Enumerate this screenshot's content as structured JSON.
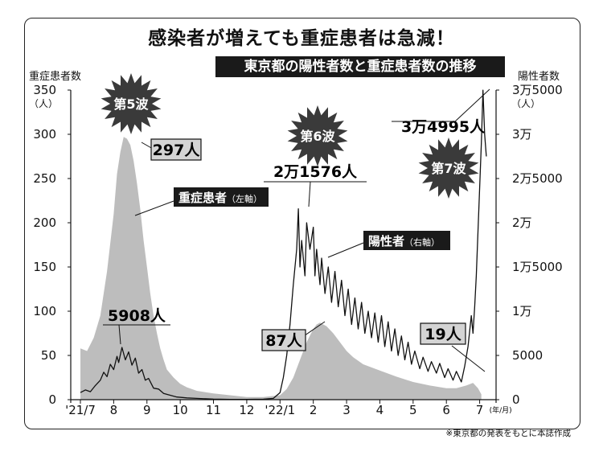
{
  "headline": "感染者が増えても重症患者は急減！",
  "subtitle": "東京都の陽性者数と重症患者数の推移",
  "source_note": "※東京都の発表をもとに本誌作成",
  "chart_data": {
    "type": "area",
    "title": "東京都の陽性者数と重症患者数の推移",
    "categories": [
      "'21/7",
      "8",
      "9",
      "10",
      "11",
      "12",
      "'22/1",
      "2",
      "3",
      "4",
      "5",
      "6",
      "7"
    ],
    "x_axis_unit": "(年/月)",
    "y_left": {
      "label": "重症患者数",
      "unit": "（人）",
      "ylim": [
        0,
        350
      ],
      "ticks": [
        "0",
        "50",
        "100",
        "150",
        "200",
        "250",
        "300",
        "350"
      ]
    },
    "y_right": {
      "label": "陽性者数",
      "unit": "（人）",
      "ylim": [
        0,
        35000
      ],
      "ticks": [
        "0",
        "5000",
        "1万",
        "1万5000",
        "2万",
        "2万5000",
        "3万",
        "3万5000"
      ]
    },
    "series": [
      {
        "name": "重症患者（左軸）",
        "axis": "left",
        "kind": "area",
        "color": "#bdbdbd",
        "points": [
          [
            0.0,
            58
          ],
          [
            0.2,
            55
          ],
          [
            0.4,
            70
          ],
          [
            0.6,
            95
          ],
          [
            0.8,
            145
          ],
          [
            1.0,
            210
          ],
          [
            1.1,
            255
          ],
          [
            1.2,
            280
          ],
          [
            1.3,
            297
          ],
          [
            1.4,
            295
          ],
          [
            1.5,
            288
          ],
          [
            1.6,
            270
          ],
          [
            1.7,
            245
          ],
          [
            1.8,
            215
          ],
          [
            1.9,
            180
          ],
          [
            2.0,
            150
          ],
          [
            2.1,
            120
          ],
          [
            2.2,
            95
          ],
          [
            2.3,
            75
          ],
          [
            2.4,
            58
          ],
          [
            2.5,
            45
          ],
          [
            2.6,
            34
          ],
          [
            2.8,
            25
          ],
          [
            3.0,
            18
          ],
          [
            3.2,
            14
          ],
          [
            3.5,
            10
          ],
          [
            4.0,
            7
          ],
          [
            4.5,
            5
          ],
          [
            5.0,
            3
          ],
          [
            5.5,
            3
          ],
          [
            6.0,
            5
          ],
          [
            6.2,
            12
          ],
          [
            6.4,
            25
          ],
          [
            6.6,
            45
          ],
          [
            6.8,
            65
          ],
          [
            7.0,
            80
          ],
          [
            7.1,
            85
          ],
          [
            7.2,
            87
          ],
          [
            7.4,
            83
          ],
          [
            7.6,
            75
          ],
          [
            7.8,
            65
          ],
          [
            8.0,
            55
          ],
          [
            8.2,
            48
          ],
          [
            8.5,
            40
          ],
          [
            9.0,
            33
          ],
          [
            9.5,
            26
          ],
          [
            10.0,
            20
          ],
          [
            10.5,
            16
          ],
          [
            11.0,
            13
          ],
          [
            11.3,
            13
          ],
          [
            11.6,
            16
          ],
          [
            11.8,
            19
          ],
          [
            11.95,
            13
          ],
          [
            12.05,
            6
          ]
        ]
      },
      {
        "name": "陽性者（右軸）",
        "axis": "right",
        "kind": "line",
        "color": "#111111",
        "points": [
          [
            0.0,
            800
          ],
          [
            0.15,
            1100
          ],
          [
            0.3,
            900
          ],
          [
            0.45,
            1600
          ],
          [
            0.6,
            2200
          ],
          [
            0.7,
            3100
          ],
          [
            0.8,
            2600
          ],
          [
            0.9,
            4000
          ],
          [
            1.0,
            3400
          ],
          [
            1.1,
            4900
          ],
          [
            1.15,
            4200
          ],
          [
            1.25,
            5908
          ],
          [
            1.35,
            4500
          ],
          [
            1.45,
            5400
          ],
          [
            1.55,
            3900
          ],
          [
            1.65,
            4700
          ],
          [
            1.75,
            3000
          ],
          [
            1.85,
            3400
          ],
          [
            1.95,
            2200
          ],
          [
            2.05,
            2400
          ],
          [
            2.2,
            1300
          ],
          [
            2.35,
            1200
          ],
          [
            2.5,
            700
          ],
          [
            2.7,
            500
          ],
          [
            2.9,
            300
          ],
          [
            3.2,
            200
          ],
          [
            3.5,
            150
          ],
          [
            4.0,
            60
          ],
          [
            4.5,
            40
          ],
          [
            5.0,
            30
          ],
          [
            5.5,
            50
          ],
          [
            5.8,
            150
          ],
          [
            6.0,
            800
          ],
          [
            6.1,
            2500
          ],
          [
            6.2,
            5000
          ],
          [
            6.3,
            8500
          ],
          [
            6.4,
            13000
          ],
          [
            6.5,
            17000
          ],
          [
            6.55,
            21576
          ],
          [
            6.6,
            15000
          ],
          [
            6.65,
            18000
          ],
          [
            6.75,
            14000
          ],
          [
            6.8,
            20000
          ],
          [
            6.9,
            17000
          ],
          [
            7.0,
            19500
          ],
          [
            7.05,
            14000
          ],
          [
            7.1,
            17000
          ],
          [
            7.2,
            13000
          ],
          [
            7.25,
            16000
          ],
          [
            7.35,
            12000
          ],
          [
            7.45,
            15000
          ],
          [
            7.55,
            11000
          ],
          [
            7.65,
            14500
          ],
          [
            7.75,
            10500
          ],
          [
            7.85,
            13500
          ],
          [
            7.95,
            9500
          ],
          [
            8.05,
            12500
          ],
          [
            8.15,
            8500
          ],
          [
            8.25,
            11500
          ],
          [
            8.35,
            8000
          ],
          [
            8.45,
            11000
          ],
          [
            8.55,
            7500
          ],
          [
            8.65,
            10000
          ],
          [
            8.75,
            7000
          ],
          [
            8.85,
            9800
          ],
          [
            8.95,
            6500
          ],
          [
            9.05,
            9500
          ],
          [
            9.15,
            6000
          ],
          [
            9.25,
            8800
          ],
          [
            9.35,
            5500
          ],
          [
            9.45,
            8000
          ],
          [
            9.55,
            5000
          ],
          [
            9.65,
            7200
          ],
          [
            9.75,
            4500
          ],
          [
            9.85,
            6500
          ],
          [
            9.95,
            4000
          ],
          [
            10.05,
            5500
          ],
          [
            10.2,
            3500
          ],
          [
            10.3,
            4800
          ],
          [
            10.45,
            3200
          ],
          [
            10.55,
            4300
          ],
          [
            10.7,
            3000
          ],
          [
            10.8,
            4100
          ],
          [
            10.95,
            2500
          ],
          [
            11.05,
            3500
          ],
          [
            11.2,
            2200
          ],
          [
            11.3,
            3200
          ],
          [
            11.45,
            2000
          ],
          [
            11.55,
            3800
          ],
          [
            11.65,
            6000
          ],
          [
            11.75,
            9500
          ],
          [
            11.8,
            7500
          ],
          [
            11.85,
            10500
          ],
          [
            11.9,
            14000
          ],
          [
            11.95,
            19000
          ],
          [
            12.0,
            24000
          ],
          [
            12.05,
            29000
          ],
          [
            12.1,
            34995
          ],
          [
            12.15,
            30000
          ],
          [
            12.2,
            27500
          ]
        ]
      }
    ],
    "annotations": [
      {
        "kind": "wave",
        "text": "第5波"
      },
      {
        "kind": "wave",
        "text": "第6波"
      },
      {
        "kind": "wave",
        "text": "第7波"
      },
      {
        "kind": "callout",
        "series": "left",
        "text": "297人"
      },
      {
        "kind": "callout",
        "series": "left",
        "text": "87人"
      },
      {
        "kind": "callout",
        "series": "left",
        "text": "19人"
      },
      {
        "kind": "callout",
        "series": "right",
        "text": "5908人"
      },
      {
        "kind": "callout",
        "series": "right",
        "text": "2万1576人"
      },
      {
        "kind": "callout",
        "series": "right",
        "text": "3万4995人"
      },
      {
        "kind": "series-label",
        "text": "重症患者",
        "suffix": "（左軸）"
      },
      {
        "kind": "series-label",
        "text": "陽性者",
        "suffix": "（右軸）"
      }
    ]
  }
}
